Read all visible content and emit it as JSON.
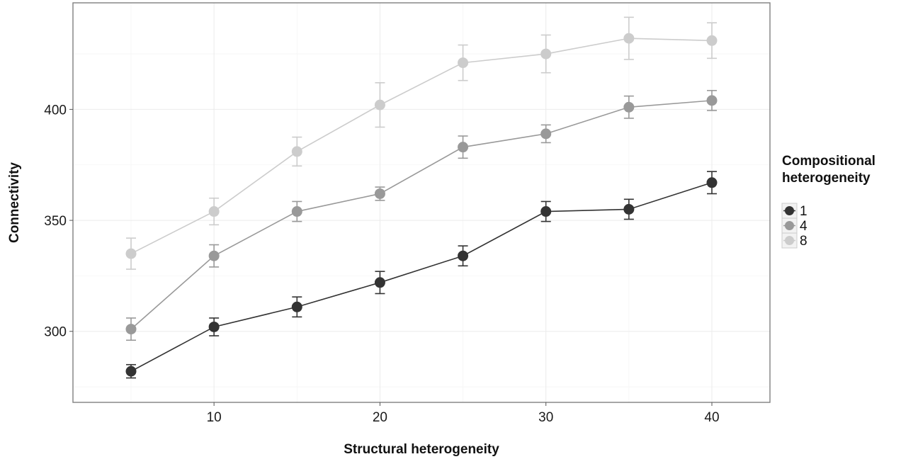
{
  "chart_data": {
    "type": "line",
    "title": "",
    "xlabel": "Structural heterogeneity",
    "ylabel": "Connectivity",
    "x": [
      5,
      10,
      15,
      20,
      25,
      30,
      35,
      40
    ],
    "xlim": [
      1.5,
      43.5
    ],
    "ylim": [
      268,
      448
    ],
    "x_ticks": [
      10,
      20,
      30,
      40
    ],
    "y_ticks": [
      300,
      350,
      400
    ],
    "grid": true,
    "error_bars": true,
    "legend": {
      "title_lines": [
        "Compositional",
        "heterogeneity"
      ],
      "placement": "right"
    },
    "series": [
      {
        "name": "1",
        "color": "#333333",
        "values": [
          282,
          302,
          311,
          322,
          334,
          354,
          355,
          367
        ],
        "err": [
          3,
          4,
          4.5,
          5,
          4.5,
          4.5,
          4.5,
          5
        ]
      },
      {
        "name": "4",
        "color": "#999999",
        "values": [
          301,
          334,
          354,
          362,
          383,
          389,
          401,
          404
        ],
        "err": [
          5,
          5,
          4.5,
          3,
          5,
          4,
          5,
          4.5
        ]
      },
      {
        "name": "8",
        "color": "#cccccc",
        "values": [
          335,
          354,
          381,
          402,
          421,
          425,
          432,
          431
        ],
        "err": [
          7,
          6,
          6.5,
          10,
          8,
          8.5,
          9.5,
          8
        ]
      }
    ]
  }
}
